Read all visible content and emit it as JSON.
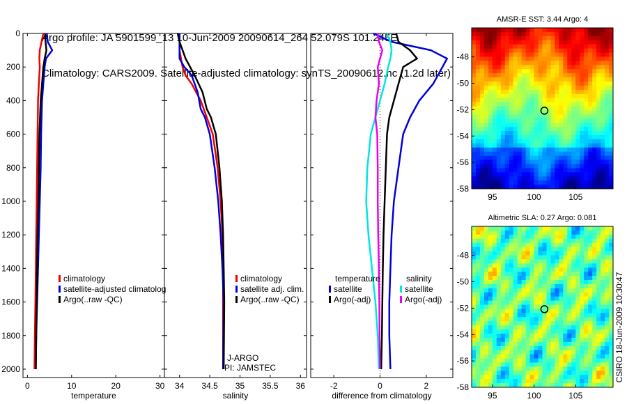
{
  "title": {
    "line1": "Argo profile: JA 5901599_13 10-Jun-2009 20090614_264 52.079S 101.245E",
    "line2": "Climatology: CARS2009. Satellite-adjusted climatology: synTS_20090612.nc (1.2d later)"
  },
  "colors": {
    "red": "#ee0000",
    "blue": "#0000dd",
    "black": "#000000",
    "cyan": "#00e5e5",
    "magenta": "#ee00ee"
  },
  "chart_data": [
    {
      "id": "temperature",
      "type": "line",
      "xlabel": "temperature",
      "ylabel": "",
      "xlim": [
        -1,
        31
      ],
      "ylim": [
        2050,
        0
      ],
      "xticks": [
        0,
        10,
        20,
        30
      ],
      "yticks": [
        0,
        200,
        400,
        600,
        800,
        1000,
        1200,
        1400,
        1600,
        1800,
        2000
      ],
      "legend": [
        "climatology",
        "satellite-adjusted climatolog",
        "Argo(..raw -QC)"
      ],
      "series": [
        {
          "name": "climatology",
          "color": "red",
          "x": [
            3.6,
            3.2,
            2.8,
            2.7,
            2.8,
            2.6,
            2.4,
            2.3,
            2.2,
            2.1,
            2.0,
            1.9,
            1.8,
            1.7,
            1.6
          ],
          "y": [
            0,
            50,
            100,
            150,
            200,
            300,
            400,
            600,
            800,
            1000,
            1200,
            1400,
            1600,
            1800,
            2000
          ]
        },
        {
          "name": "satellite-adjusted climatology",
          "color": "blue",
          "x": [
            4.4,
            4.6,
            5.6,
            4.2,
            3.9,
            3.6,
            3.3,
            3.1,
            3.0,
            2.8,
            2.6,
            2.4,
            2.2,
            2.0,
            1.9
          ],
          "y": [
            0,
            50,
            100,
            150,
            200,
            300,
            400,
            600,
            800,
            1000,
            1200,
            1400,
            1600,
            1800,
            2000
          ]
        },
        {
          "name": "Argo(..raw -QC)",
          "color": "black",
          "x": [
            4.0,
            4.1,
            4.3,
            3.9,
            3.6,
            3.3,
            3.0,
            2.7,
            2.6,
            2.5,
            2.3,
            2.2,
            2.1,
            2.0,
            1.9
          ],
          "y": [
            0,
            50,
            100,
            150,
            200,
            300,
            400,
            600,
            800,
            1000,
            1200,
            1400,
            1600,
            1800,
            2000
          ]
        }
      ]
    },
    {
      "id": "salinity",
      "type": "line",
      "xlabel": "salinity",
      "xlim": [
        33.75,
        36.1
      ],
      "ylim": [
        2050,
        0
      ],
      "xticks": [
        34,
        34.5,
        35,
        35.5,
        36
      ],
      "xticklabels": [
        "34",
        "34.5",
        "35",
        "35.5",
        "36"
      ],
      "yticks": [
        0,
        200,
        400,
        600,
        800,
        1000,
        1200,
        1400,
        1600,
        1800,
        2000
      ],
      "legend": [
        "climatology",
        "satellite adj. clim.",
        "Argo(..raw -QC)"
      ],
      "annotation": [
        "J-ARGO",
        "PI: JAMSTEC"
      ],
      "series": [
        {
          "name": "climatology",
          "color": "red",
          "x": [
            34.0,
            34.0,
            34.05,
            34.1,
            34.2,
            34.35,
            34.45,
            34.55,
            34.63,
            34.68,
            34.71,
            34.72,
            34.72,
            34.72
          ],
          "y": [
            0,
            100,
            200,
            250,
            300,
            400,
            500,
            600,
            800,
            1000,
            1200,
            1400,
            1600,
            2000
          ]
        },
        {
          "name": "satellite adj. clim.",
          "color": "blue",
          "x": [
            34.0,
            34.0,
            34.08,
            34.2,
            34.3,
            34.35,
            34.42,
            34.5,
            34.58,
            34.64,
            34.68,
            34.71,
            34.73,
            34.72
          ],
          "y": [
            0,
            150,
            200,
            250,
            350,
            450,
            500,
            600,
            800,
            1000,
            1200,
            1400,
            1600,
            2000
          ]
        },
        {
          "name": "Argo(..raw -QC)",
          "color": "black",
          "x": [
            33.97,
            34.0,
            34.1,
            34.25,
            34.38,
            34.45,
            34.52,
            34.6,
            34.66,
            34.7,
            34.72,
            34.73,
            34.74,
            34.73
          ],
          "y": [
            0,
            50,
            150,
            250,
            350,
            450,
            500,
            600,
            800,
            1000,
            1200,
            1400,
            1600,
            2000
          ]
        }
      ]
    },
    {
      "id": "difference",
      "type": "line",
      "xlabel": "difference from climatology",
      "xlim": [
        -3,
        3.15
      ],
      "ylim": [
        2050,
        0
      ],
      "xticks": [
        -2,
        0,
        2
      ],
      "yticks": [
        0,
        200,
        400,
        600,
        800,
        1000,
        1200,
        1400,
        1600,
        1800,
        2000
      ],
      "legend_left": {
        "title": "temperature",
        "items": [
          "satellite",
          "Argo(-adj)"
        ]
      },
      "legend_right": {
        "title": "salinity",
        "items": [
          "satellite",
          "Argo(-adj)"
        ]
      },
      "series": [
        {
          "name": "temperature satellite",
          "color": "blue",
          "x": [
            -0.3,
            0.5,
            2.2,
            2.9,
            2.7,
            2.3,
            1.7,
            1.3,
            1.0,
            0.8,
            0.6,
            0.5,
            0.45,
            0.4,
            0.4,
            0.45
          ],
          "y": [
            0,
            50,
            100,
            150,
            200,
            300,
            400,
            500,
            600,
            800,
            1000,
            1200,
            1400,
            1600,
            1800,
            2000
          ]
        },
        {
          "name": "temperature Argo(-adj)",
          "color": "black",
          "x": [
            0.7,
            0.8,
            1.3,
            1.6,
            1.0,
            0.8,
            0.6,
            0.4,
            0.3,
            0.25,
            0.2,
            0.15,
            0.12,
            0.1,
            0.08,
            0.05
          ],
          "y": [
            0,
            50,
            100,
            150,
            200,
            300,
            400,
            500,
            600,
            800,
            1000,
            1200,
            1400,
            1600,
            1800,
            2000
          ]
        },
        {
          "name": "salinity satellite",
          "color": "cyan",
          "x": [
            0.3,
            0.45,
            0.5,
            0.45,
            0.35,
            0.2,
            0.0,
            -0.2,
            -0.4,
            -0.55,
            -0.6,
            -0.5,
            -0.35,
            -0.2,
            -0.1,
            -0.05
          ],
          "y": [
            0,
            50,
            100,
            150,
            200,
            300,
            400,
            500,
            600,
            800,
            1000,
            1200,
            1400,
            1600,
            1800,
            2000
          ]
        },
        {
          "name": "salinity Argo(-adj)",
          "color": "magenta",
          "x": [
            -0.1,
            -0.05,
            0.1,
            0.0,
            -0.1,
            -0.05,
            -0.15,
            -0.2,
            -0.12,
            -0.1,
            -0.1,
            -0.08,
            -0.05,
            -0.03,
            -0.02,
            0.0
          ],
          "y": [
            0,
            50,
            100,
            150,
            200,
            300,
            400,
            500,
            600,
            800,
            1000,
            1200,
            1400,
            1600,
            1800,
            2000
          ]
        }
      ]
    },
    {
      "id": "sst_map",
      "type": "heatmap",
      "title": "AMSR-E SST: 3.44 Argo: 4",
      "xlim": [
        92.5,
        109.5
      ],
      "ylim": [
        -58,
        -45.8
      ],
      "xticks": [
        95,
        100,
        105
      ],
      "yticks": [
        -48,
        -50,
        -52,
        -54,
        -56,
        -58
      ],
      "marker": {
        "lon": 101.245,
        "lat": -52.079
      }
    },
    {
      "id": "sla_map",
      "type": "heatmap",
      "title": "Altimetric SLA: 0.27 Argo: 0.081",
      "xlim": [
        92.5,
        109.5
      ],
      "ylim": [
        -58,
        -45.8
      ],
      "xticks": [
        95,
        100,
        105
      ],
      "yticks": [
        -48,
        -50,
        -52,
        -54,
        -56,
        -58
      ],
      "marker": {
        "lon": 101.245,
        "lat": -52.079
      }
    }
  ],
  "credit": "CSIRO 18-Jun-2009 10:30:47"
}
